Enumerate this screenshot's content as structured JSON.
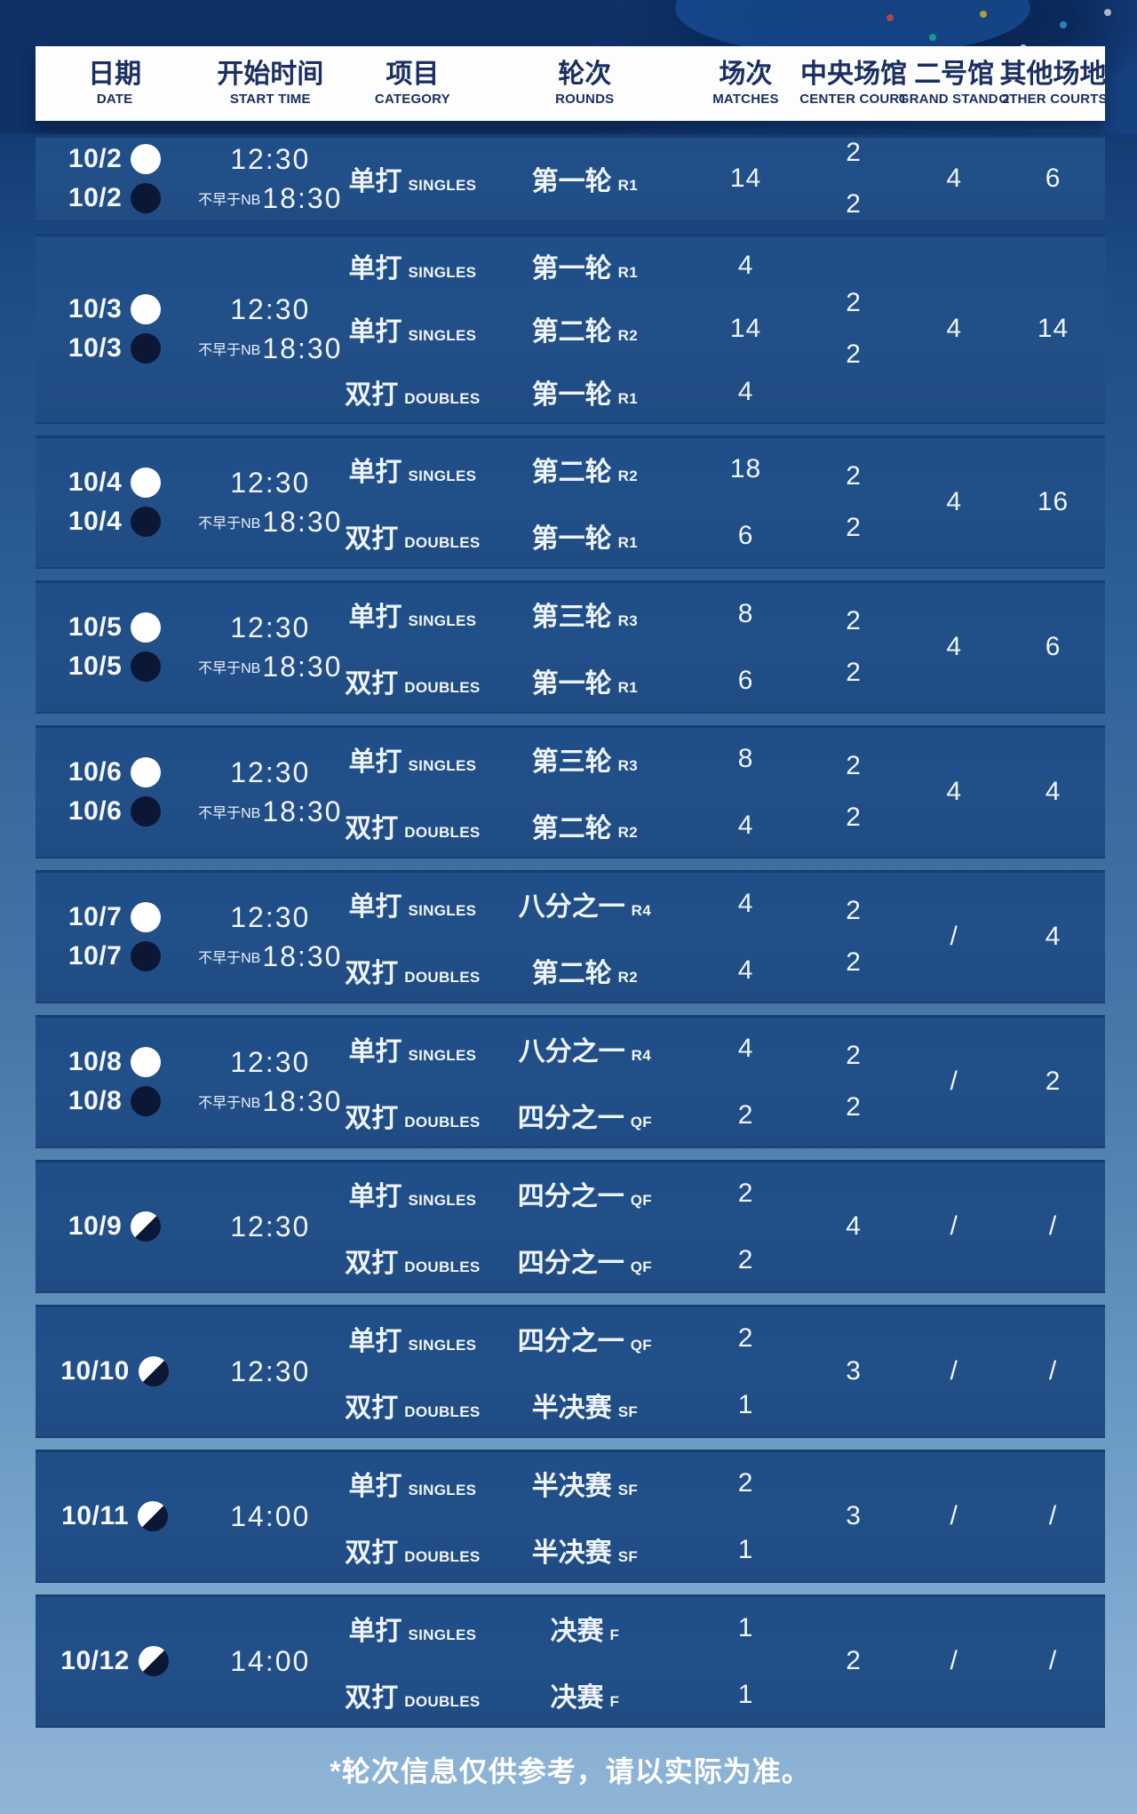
{
  "header": {
    "columns": [
      {
        "zh": "日期",
        "en": "DATE"
      },
      {
        "zh": "开始时间",
        "en": "START TIME"
      },
      {
        "zh": "项目",
        "en": "CATEGORY"
      },
      {
        "zh": "轮次",
        "en": "ROUNDS"
      },
      {
        "zh": "场次",
        "en": "MATCHES"
      },
      {
        "zh": "中央场馆",
        "en": "CENTER COURT"
      },
      {
        "zh": "二号馆",
        "en": "GRAND STAND 2"
      },
      {
        "zh": "其他场地",
        "en": "OTHER COURTS"
      }
    ]
  },
  "rows": [
    {
      "dates": [
        {
          "label": "10/2",
          "session": "day"
        },
        {
          "label": "10/2",
          "session": "night"
        }
      ],
      "times": [
        {
          "prefix": "",
          "time": "12:30"
        },
        {
          "prefix": "不早于NB",
          "time": "18:30"
        }
      ],
      "events": [
        {
          "category_zh": "单打",
          "category_en": "SINGLES",
          "round_zh": "第一轮",
          "round_en": "R1",
          "matches": "14"
        }
      ],
      "center_court": [
        "2",
        "2"
      ],
      "grand_stand_2": "4",
      "other_courts": "6"
    },
    {
      "dates": [
        {
          "label": "10/3",
          "session": "day"
        },
        {
          "label": "10/3",
          "session": "night"
        }
      ],
      "times": [
        {
          "prefix": "",
          "time": "12:30"
        },
        {
          "prefix": "不早于NB",
          "time": "18:30"
        }
      ],
      "events": [
        {
          "category_zh": "单打",
          "category_en": "SINGLES",
          "round_zh": "第一轮",
          "round_en": "R1",
          "matches": "4"
        },
        {
          "category_zh": "单打",
          "category_en": "SINGLES",
          "round_zh": "第二轮",
          "round_en": "R2",
          "matches": "14"
        },
        {
          "category_zh": "双打",
          "category_en": "DOUBLES",
          "round_zh": "第一轮",
          "round_en": "R1",
          "matches": "4"
        }
      ],
      "center_court": [
        "2",
        "2"
      ],
      "grand_stand_2": "4",
      "other_courts": "14"
    },
    {
      "dates": [
        {
          "label": "10/4",
          "session": "day"
        },
        {
          "label": "10/4",
          "session": "night"
        }
      ],
      "times": [
        {
          "prefix": "",
          "time": "12:30"
        },
        {
          "prefix": "不早于NB",
          "time": "18:30"
        }
      ],
      "events": [
        {
          "category_zh": "单打",
          "category_en": "SINGLES",
          "round_zh": "第二轮",
          "round_en": "R2",
          "matches": "18"
        },
        {
          "category_zh": "双打",
          "category_en": "DOUBLES",
          "round_zh": "第一轮",
          "round_en": "R1",
          "matches": "6"
        }
      ],
      "center_court": [
        "2",
        "2"
      ],
      "grand_stand_2": "4",
      "other_courts": "16"
    },
    {
      "dates": [
        {
          "label": "10/5",
          "session": "day"
        },
        {
          "label": "10/5",
          "session": "night"
        }
      ],
      "times": [
        {
          "prefix": "",
          "time": "12:30"
        },
        {
          "prefix": "不早于NB",
          "time": "18:30"
        }
      ],
      "events": [
        {
          "category_zh": "单打",
          "category_en": "SINGLES",
          "round_zh": "第三轮",
          "round_en": "R3",
          "matches": "8"
        },
        {
          "category_zh": "双打",
          "category_en": "DOUBLES",
          "round_zh": "第一轮",
          "round_en": "R1",
          "matches": "6"
        }
      ],
      "center_court": [
        "2",
        "2"
      ],
      "grand_stand_2": "4",
      "other_courts": "6"
    },
    {
      "dates": [
        {
          "label": "10/6",
          "session": "day"
        },
        {
          "label": "10/6",
          "session": "night"
        }
      ],
      "times": [
        {
          "prefix": "",
          "time": "12:30"
        },
        {
          "prefix": "不早于NB",
          "time": "18:30"
        }
      ],
      "events": [
        {
          "category_zh": "单打",
          "category_en": "SINGLES",
          "round_zh": "第三轮",
          "round_en": "R3",
          "matches": "8"
        },
        {
          "category_zh": "双打",
          "category_en": "DOUBLES",
          "round_zh": "第二轮",
          "round_en": "R2",
          "matches": "4"
        }
      ],
      "center_court": [
        "2",
        "2"
      ],
      "grand_stand_2": "4",
      "other_courts": "4"
    },
    {
      "dates": [
        {
          "label": "10/7",
          "session": "day"
        },
        {
          "label": "10/7",
          "session": "night"
        }
      ],
      "times": [
        {
          "prefix": "",
          "time": "12:30"
        },
        {
          "prefix": "不早于NB",
          "time": "18:30"
        }
      ],
      "events": [
        {
          "category_zh": "单打",
          "category_en": "SINGLES",
          "round_zh": "八分之一",
          "round_en": "R4",
          "matches": "4"
        },
        {
          "category_zh": "双打",
          "category_en": "DOUBLES",
          "round_zh": "第二轮",
          "round_en": "R2",
          "matches": "4"
        }
      ],
      "center_court": [
        "2",
        "2"
      ],
      "grand_stand_2": "/",
      "other_courts": "4"
    },
    {
      "dates": [
        {
          "label": "10/8",
          "session": "day"
        },
        {
          "label": "10/8",
          "session": "night"
        }
      ],
      "times": [
        {
          "prefix": "",
          "time": "12:30"
        },
        {
          "prefix": "不早于NB",
          "time": "18:30"
        }
      ],
      "events": [
        {
          "category_zh": "单打",
          "category_en": "SINGLES",
          "round_zh": "八分之一",
          "round_en": "R4",
          "matches": "4"
        },
        {
          "category_zh": "双打",
          "category_en": "DOUBLES",
          "round_zh": "四分之一",
          "round_en": "QF",
          "matches": "2"
        }
      ],
      "center_court": [
        "2",
        "2"
      ],
      "grand_stand_2": "/",
      "other_courts": "2"
    },
    {
      "dates": [
        {
          "label": "10/9",
          "session": "mixed"
        }
      ],
      "times": [
        {
          "prefix": "",
          "time": "12:30"
        }
      ],
      "events": [
        {
          "category_zh": "单打",
          "category_en": "SINGLES",
          "round_zh": "四分之一",
          "round_en": "QF",
          "matches": "2"
        },
        {
          "category_zh": "双打",
          "category_en": "DOUBLES",
          "round_zh": "四分之一",
          "round_en": "QF",
          "matches": "2"
        }
      ],
      "center_court": [
        "4"
      ],
      "grand_stand_2": "/",
      "other_courts": "/"
    },
    {
      "dates": [
        {
          "label": "10/10",
          "session": "mixed"
        }
      ],
      "times": [
        {
          "prefix": "",
          "time": "12:30"
        }
      ],
      "events": [
        {
          "category_zh": "单打",
          "category_en": "SINGLES",
          "round_zh": "四分之一",
          "round_en": "QF",
          "matches": "2"
        },
        {
          "category_zh": "双打",
          "category_en": "DOUBLES",
          "round_zh": "半决赛",
          "round_en": "SF",
          "matches": "1"
        }
      ],
      "center_court": [
        "3"
      ],
      "grand_stand_2": "/",
      "other_courts": "/"
    },
    {
      "dates": [
        {
          "label": "10/11",
          "session": "mixed"
        }
      ],
      "times": [
        {
          "prefix": "",
          "time": "14:00"
        }
      ],
      "events": [
        {
          "category_zh": "单打",
          "category_en": "SINGLES",
          "round_zh": "半决赛",
          "round_en": "SF",
          "matches": "2"
        },
        {
          "category_zh": "双打",
          "category_en": "DOUBLES",
          "round_zh": "半决赛",
          "round_en": "SF",
          "matches": "1"
        }
      ],
      "center_court": [
        "3"
      ],
      "grand_stand_2": "/",
      "other_courts": "/"
    },
    {
      "dates": [
        {
          "label": "10/12",
          "session": "mixed"
        }
      ],
      "times": [
        {
          "prefix": "",
          "time": "14:00"
        }
      ],
      "events": [
        {
          "category_zh": "单打",
          "category_en": "SINGLES",
          "round_zh": "决赛",
          "round_en": "F",
          "matches": "1"
        },
        {
          "category_zh": "双打",
          "category_en": "DOUBLES",
          "round_zh": "决赛",
          "round_en": "F",
          "matches": "1"
        }
      ],
      "center_court": [
        "2"
      ],
      "grand_stand_2": "/",
      "other_courts": "/"
    }
  ],
  "footnote": "*轮次信息仅供参考，请以实际为准。",
  "colors": {
    "row_panel": "#224f88",
    "header_text": "#1b2f63",
    "night_icon": "#0c1736",
    "day_icon": "#ffffff"
  }
}
